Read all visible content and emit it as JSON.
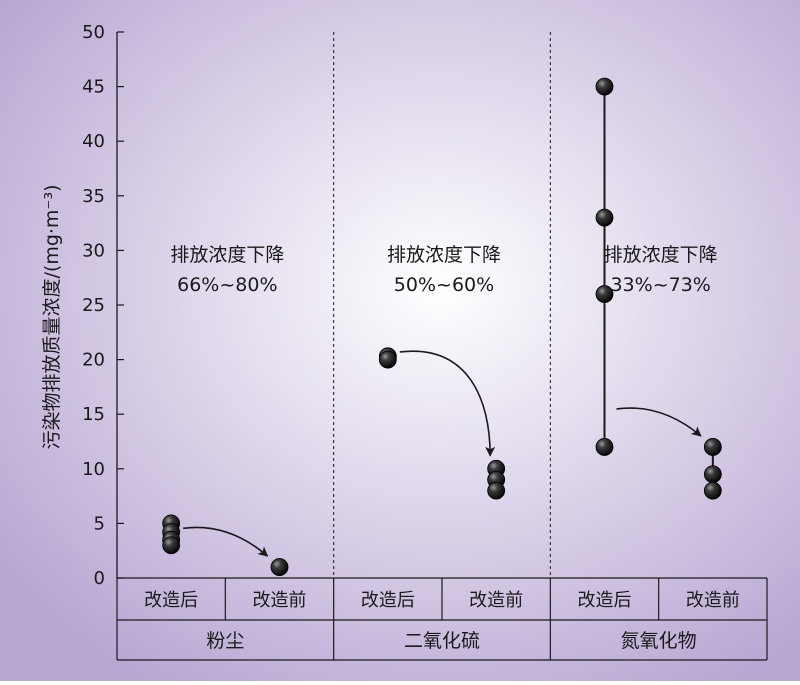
{
  "chart_data": {
    "type": "scatter",
    "ylabel": "污染物排放质量浓度/(mg·m⁻³)",
    "ylim": [
      0,
      50
    ],
    "yticks": [
      0,
      5,
      10,
      15,
      20,
      25,
      30,
      35,
      40,
      45,
      50
    ],
    "grid": false,
    "groups": [
      {
        "name": "粉尘",
        "annotation": [
          "排放浓度下降",
          "66%~80%"
        ],
        "subgroups": [
          {
            "label": "改造后",
            "values": [
              3,
              3.5,
              4.2,
              5
            ]
          },
          {
            "label": "改造前",
            "values": [
              1
            ]
          }
        ]
      },
      {
        "name": "二氧化硫",
        "annotation": [
          "排放浓度下降",
          "50%~60%"
        ],
        "subgroups": [
          {
            "label": "改造后",
            "values": [
              20,
              20.3
            ]
          },
          {
            "label": "改造前",
            "values": [
              8,
              9,
              10
            ]
          }
        ]
      },
      {
        "name": "氮氧化物",
        "annotation": [
          "排放浓度下降",
          "33%~73%"
        ],
        "subgroups": [
          {
            "label": "改造后",
            "values": [
              12,
              26,
              33,
              45
            ]
          },
          {
            "label": "改造前",
            "values": [
              8,
              9.5,
              12
            ]
          }
        ]
      }
    ]
  },
  "colors": {
    "background_center": "#ffffff",
    "background_edge": "#b7a5d2",
    "ink": "#1a1a1a",
    "point": "#0d0d0d"
  }
}
